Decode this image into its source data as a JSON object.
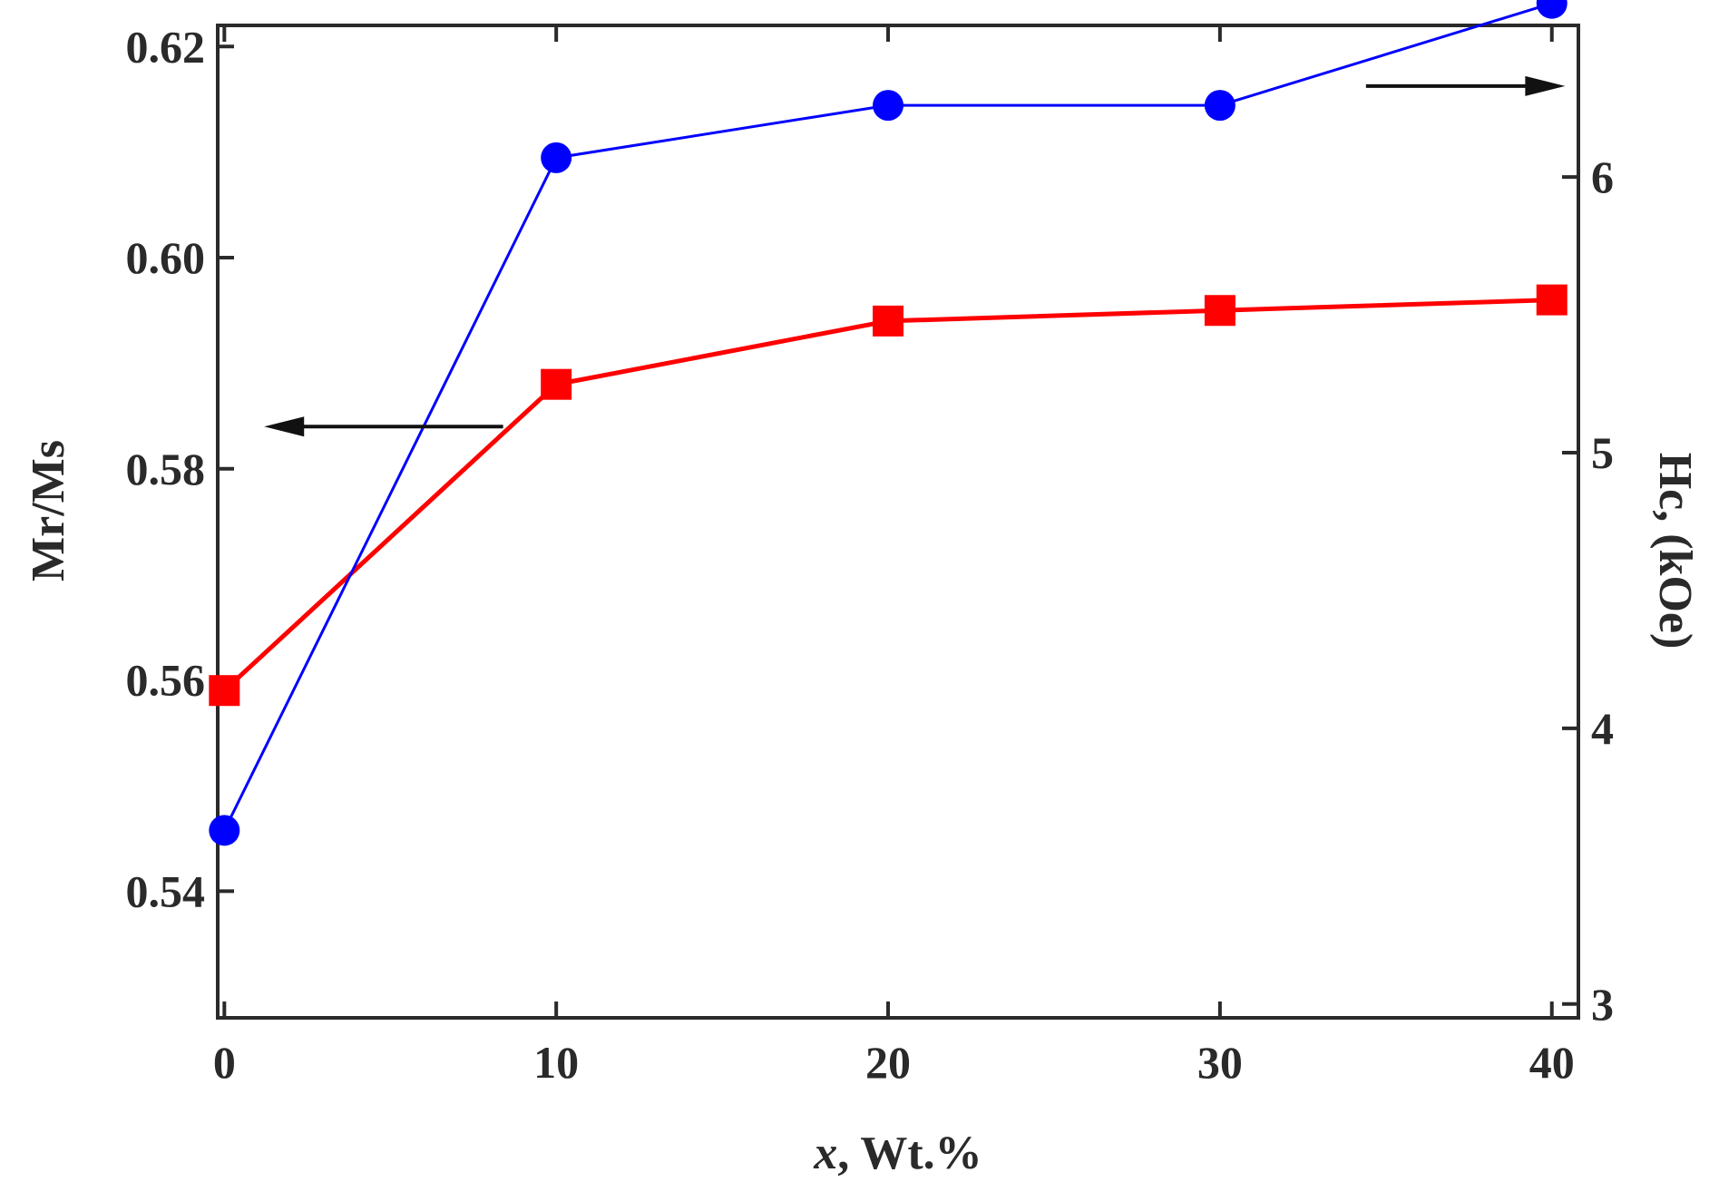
{
  "chart_data": {
    "type": "line",
    "title": "",
    "xlabel_var": "x",
    "xlabel_rest": ", Wt.%",
    "ylabel_left": "Mr/Ms",
    "ylabel_right": "Hc, (kOe)",
    "xlim": [
      -0.2,
      40.8
    ],
    "ylim_left": [
      0.528,
      0.622
    ],
    "ylim_right": [
      2.95,
      6.55
    ],
    "xticks": [
      0,
      10,
      20,
      30,
      40
    ],
    "xtick_labels": [
      "0",
      "10",
      "20",
      "30",
      "40"
    ],
    "yticks_left": [
      0.54,
      0.56,
      0.58,
      0.6,
      0.62
    ],
    "ytick_labels_left": [
      "0.54",
      "0.56",
      "0.58",
      "0.60",
      "0.62"
    ],
    "yticks_right": [
      3,
      4,
      5,
      6
    ],
    "ytick_labels_right": [
      "3",
      "4",
      "5",
      "6"
    ],
    "grid": false,
    "series": [
      {
        "name": "Mr/Ms",
        "axis": "left",
        "color": "#ff0000",
        "marker": "square",
        "x": [
          0,
          10,
          20,
          30,
          40
        ],
        "values": [
          0.559,
          0.588,
          0.594,
          0.595,
          0.596
        ]
      },
      {
        "name": "Hc",
        "axis": "right",
        "color": "#0000ff",
        "marker": "circle",
        "x": [
          0,
          10,
          20,
          30,
          40
        ],
        "values": [
          3.63,
          6.07,
          6.26,
          6.26,
          6.63
        ]
      }
    ],
    "annotations": [
      {
        "type": "arrow",
        "direction": "left",
        "indicates": "left axis",
        "x_from": 8.4,
        "x_to": 1.2,
        "y_left": 0.584
      },
      {
        "type": "arrow",
        "direction": "right",
        "indicates": "right axis",
        "x_from": 34.4,
        "x_to": 40.4,
        "y_right": 6.33
      }
    ]
  }
}
